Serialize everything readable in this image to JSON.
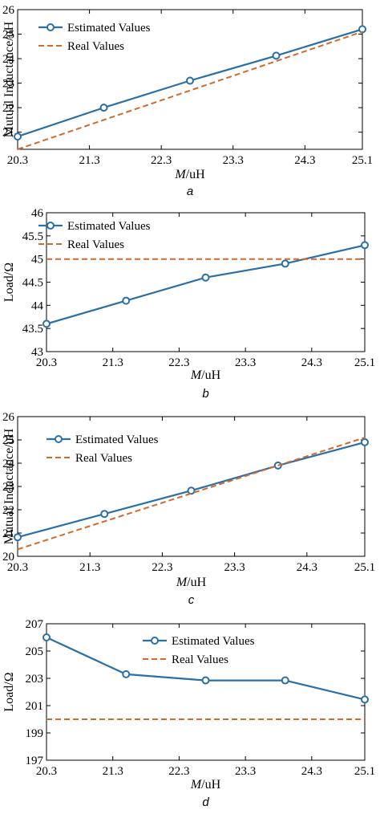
{
  "chart_data": [
    {
      "type": "line",
      "caption": "a",
      "x_ticks": [
        20.3,
        21.3,
        22.3,
        23.3,
        24.3,
        25.1
      ],
      "x_tick_labels": [
        "20.3",
        "21.3",
        "22.3",
        "23.3",
        "24.3",
        "25.1"
      ],
      "xlim": [
        20.3,
        25.1
      ],
      "xlabel": {
        "italic": "M",
        "rest": "/uH"
      },
      "ylabel": "Mutual Inductance/uH",
      "y_ticks": [
        21,
        22,
        23,
        24,
        25,
        26
      ],
      "y_tick_labels": [
        "21",
        "22",
        "23",
        "24",
        "25",
        "26"
      ],
      "ylim": [
        20.3,
        26
      ],
      "legend_position": "top-left",
      "series": [
        {
          "name": "Estimated Values",
          "style": "solid-circle",
          "color": "#2a6fa5",
          "x": [
            20.3,
            21.5,
            22.7,
            23.9,
            25.1
          ],
          "y": [
            20.82,
            22.0,
            23.1,
            24.12,
            25.2
          ]
        },
        {
          "name": "Real Values",
          "style": "dashed",
          "color": "#d2692d",
          "x": [
            20.3,
            25.1
          ],
          "y": [
            20.3,
            25.1
          ]
        }
      ]
    },
    {
      "type": "line",
      "caption": "b",
      "x_ticks": [
        20.3,
        21.3,
        22.3,
        23.3,
        24.3,
        25.1
      ],
      "x_tick_labels": [
        "20.3",
        "21.3",
        "22.3",
        "23.3",
        "24.3",
        "25.1"
      ],
      "xlim": [
        20.3,
        25.1
      ],
      "xlabel": {
        "italic": "M",
        "rest": "/uH"
      },
      "ylabel": "Load/Ω",
      "y_ticks": [
        43,
        43.5,
        44,
        44.5,
        45,
        45.5,
        46
      ],
      "y_tick_labels": [
        "43",
        "43.5",
        "44",
        "44.5",
        "45",
        "45.5",
        "46"
      ],
      "ylim": [
        43,
        46
      ],
      "legend_position": "top-left",
      "series": [
        {
          "name": "Estimated Values",
          "style": "solid-circle",
          "color": "#2a6fa5",
          "x": [
            20.3,
            21.5,
            22.7,
            23.9,
            25.1
          ],
          "y": [
            43.6,
            44.1,
            44.6,
            44.9,
            45.3
          ]
        },
        {
          "name": "Real Values",
          "style": "dashed",
          "color": "#d2692d",
          "x": [
            20.3,
            25.1
          ],
          "y": [
            45,
            45
          ]
        }
      ]
    },
    {
      "type": "line",
      "caption": "c",
      "x_ticks": [
        20.3,
        21.3,
        22.3,
        23.3,
        24.3,
        25.1
      ],
      "x_tick_labels": [
        "20.3",
        "21.3",
        "22.3",
        "23.3",
        "24.3",
        "25.1"
      ],
      "xlim": [
        20.3,
        25.1
      ],
      "xlabel": {
        "italic": "M",
        "rest": "/uH"
      },
      "ylabel": "Mutual Inductance/uH",
      "y_ticks": [
        20,
        21,
        22,
        23,
        24,
        25,
        26
      ],
      "y_tick_labels": [
        "20",
        "21",
        "22",
        "23",
        "24",
        "25",
        "26"
      ],
      "ylim": [
        20,
        26
      ],
      "legend_position": "top-left",
      "series": [
        {
          "name": "Estimated Values",
          "style": "solid-circle",
          "color": "#2a6fa5",
          "x": [
            20.3,
            21.5,
            22.7,
            23.9,
            25.1
          ],
          "y": [
            20.82,
            21.82,
            22.82,
            23.9,
            24.9
          ]
        },
        {
          "name": "Real Values",
          "style": "dashed",
          "color": "#d2692d",
          "x": [
            20.3,
            25.1
          ],
          "y": [
            20.3,
            25.1
          ]
        }
      ]
    },
    {
      "type": "line",
      "caption": "d",
      "x_ticks": [
        20.3,
        21.3,
        22.3,
        23.3,
        24.3,
        25.1
      ],
      "x_tick_labels": [
        "20.3",
        "21.3",
        "22.3",
        "23.3",
        "24.3",
        "25.1"
      ],
      "xlim": [
        20.3,
        25.1
      ],
      "xlabel": {
        "italic": "M",
        "rest": "/uH"
      },
      "ylabel": "Load/Ω",
      "y_ticks": [
        197,
        199,
        201,
        203,
        205,
        207
      ],
      "y_tick_labels": [
        "197",
        "199",
        "201",
        "203",
        "205",
        "207"
      ],
      "ylim": [
        197,
        207
      ],
      "legend_position": "top-right",
      "series": [
        {
          "name": "Estimated Values",
          "style": "solid-circle",
          "color": "#2a6fa5",
          "x": [
            20.3,
            21.5,
            22.7,
            23.9,
            25.1
          ],
          "y": [
            206.0,
            203.3,
            202.85,
            202.85,
            201.45
          ]
        },
        {
          "name": "Real Values",
          "style": "dashed",
          "color": "#d2692d",
          "x": [
            20.3,
            25.1
          ],
          "y": [
            200,
            200
          ]
        }
      ]
    }
  ]
}
